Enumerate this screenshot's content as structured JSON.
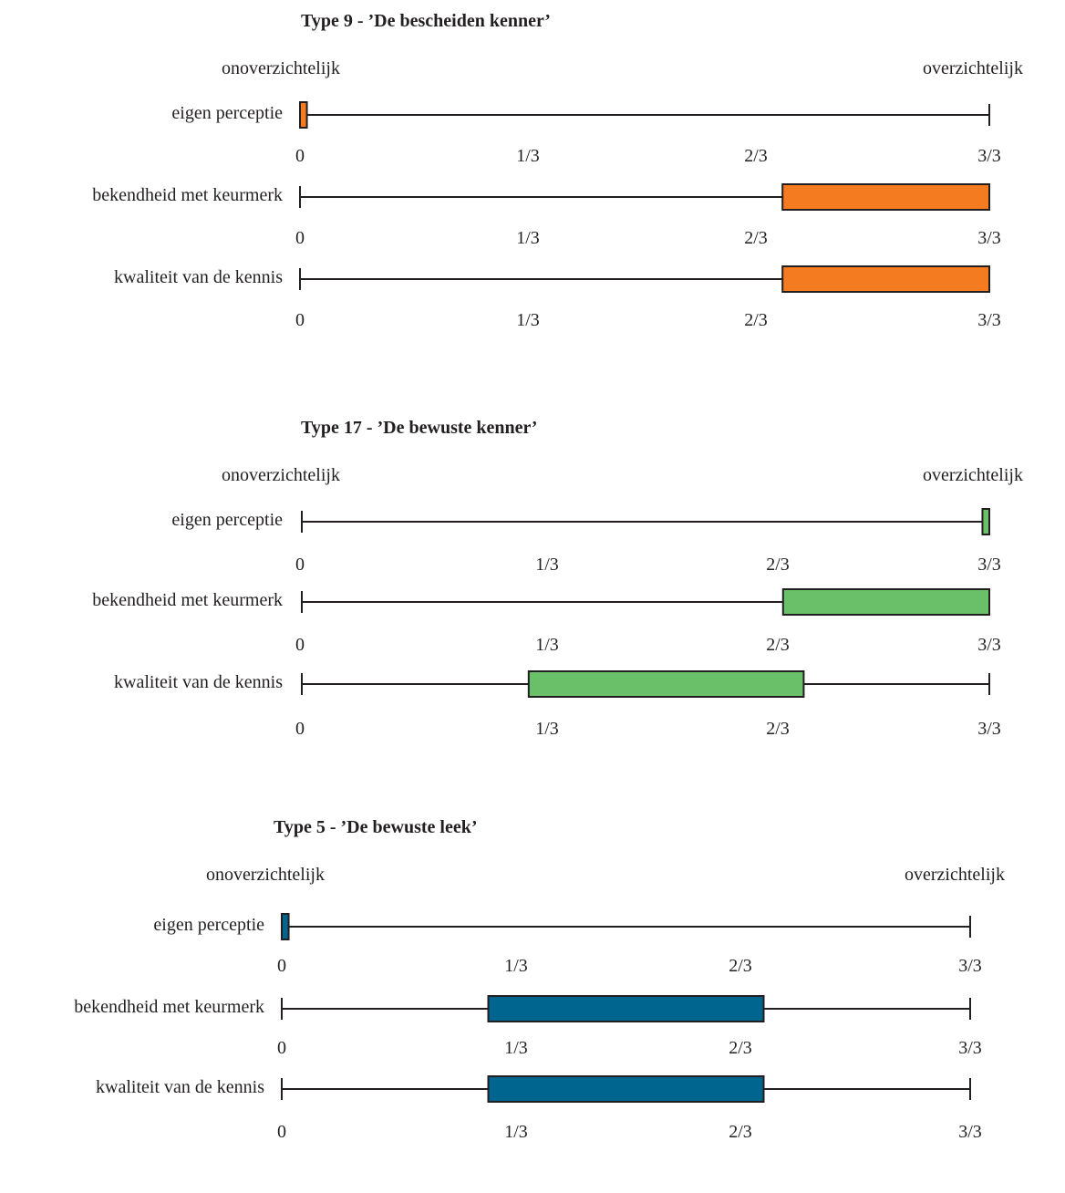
{
  "chart_data": [
    {
      "type": "bar",
      "title": "Type 9 - ’De bescheiden kenner’",
      "left_label": "onoverzichtelijk",
      "right_label": "overzichtelijk",
      "tick_labels": [
        "0",
        "1/3",
        "2/3",
        "3/3"
      ],
      "xlim": [
        0,
        1
      ],
      "color": "#f47b20",
      "rows": [
        {
          "label": "eigen perceptie",
          "start": 0.0,
          "end": 0.01
        },
        {
          "label": "bekendheid met keurmerk",
          "start": 0.7,
          "end": 1.0
        },
        {
          "label": "kwaliteit van de kennis",
          "start": 0.7,
          "end": 1.0
        }
      ]
    },
    {
      "type": "bar",
      "title": "Type 17 - ’De bewuste kenner’",
      "left_label": "onoverzichtelijk",
      "right_label": "overzichtelijk",
      "tick_labels": [
        "0",
        "1/3",
        "2/3",
        "3/3"
      ],
      "xlim": [
        0,
        1
      ],
      "color": "#6abf69",
      "rows": [
        {
          "label": "eigen perceptie",
          "start": 0.99,
          "end": 1.0
        },
        {
          "label": "bekendheid met keurmerk",
          "start": 0.7,
          "end": 1.0
        },
        {
          "label": "kwaliteit van de kennis",
          "start": 0.33,
          "end": 0.73
        }
      ]
    },
    {
      "type": "bar",
      "title": "Type 5 - ’De bewuste leek’",
      "left_label": "onoverzichtelijk",
      "right_label": "overzichtelijk",
      "tick_labels": [
        "0",
        "1/3",
        "2/3",
        "3/3"
      ],
      "xlim": [
        0,
        1
      ],
      "color": "#00668f",
      "rows": [
        {
          "label": "eigen perceptie",
          "start": 0.0,
          "end": 0.01
        },
        {
          "label": "bekendheid met keurmerk",
          "start": 0.3,
          "end": 0.7
        },
        {
          "label": "kwaliteit van de kennis",
          "start": 0.3,
          "end": 0.7
        }
      ]
    }
  ]
}
